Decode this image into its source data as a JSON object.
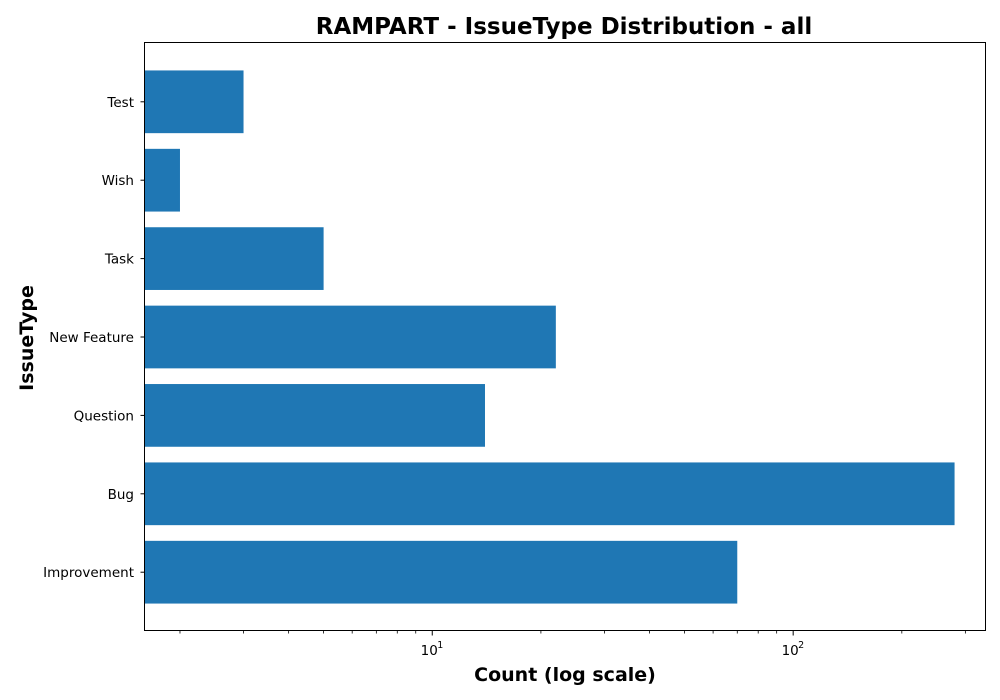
{
  "chart_data": {
    "type": "bar",
    "orientation": "horizontal",
    "title": "RAMPART - IssueType Distribution - all",
    "xlabel": "Count (log scale)",
    "ylabel": "IssueType",
    "x_scale": "log",
    "xlim": [
      1.6,
      340
    ],
    "x_ticks": [
      {
        "value": 10,
        "base": "10",
        "exp": "1"
      },
      {
        "value": 100,
        "base": "10",
        "exp": "2"
      }
    ],
    "categories": [
      "Improvement",
      "Bug",
      "Question",
      "New Feature",
      "Task",
      "Wish",
      "Test"
    ],
    "values": [
      70,
      280,
      14,
      22,
      5,
      2,
      3
    ],
    "bar_color": "#1f77b4",
    "grid": false,
    "legend": false
  }
}
